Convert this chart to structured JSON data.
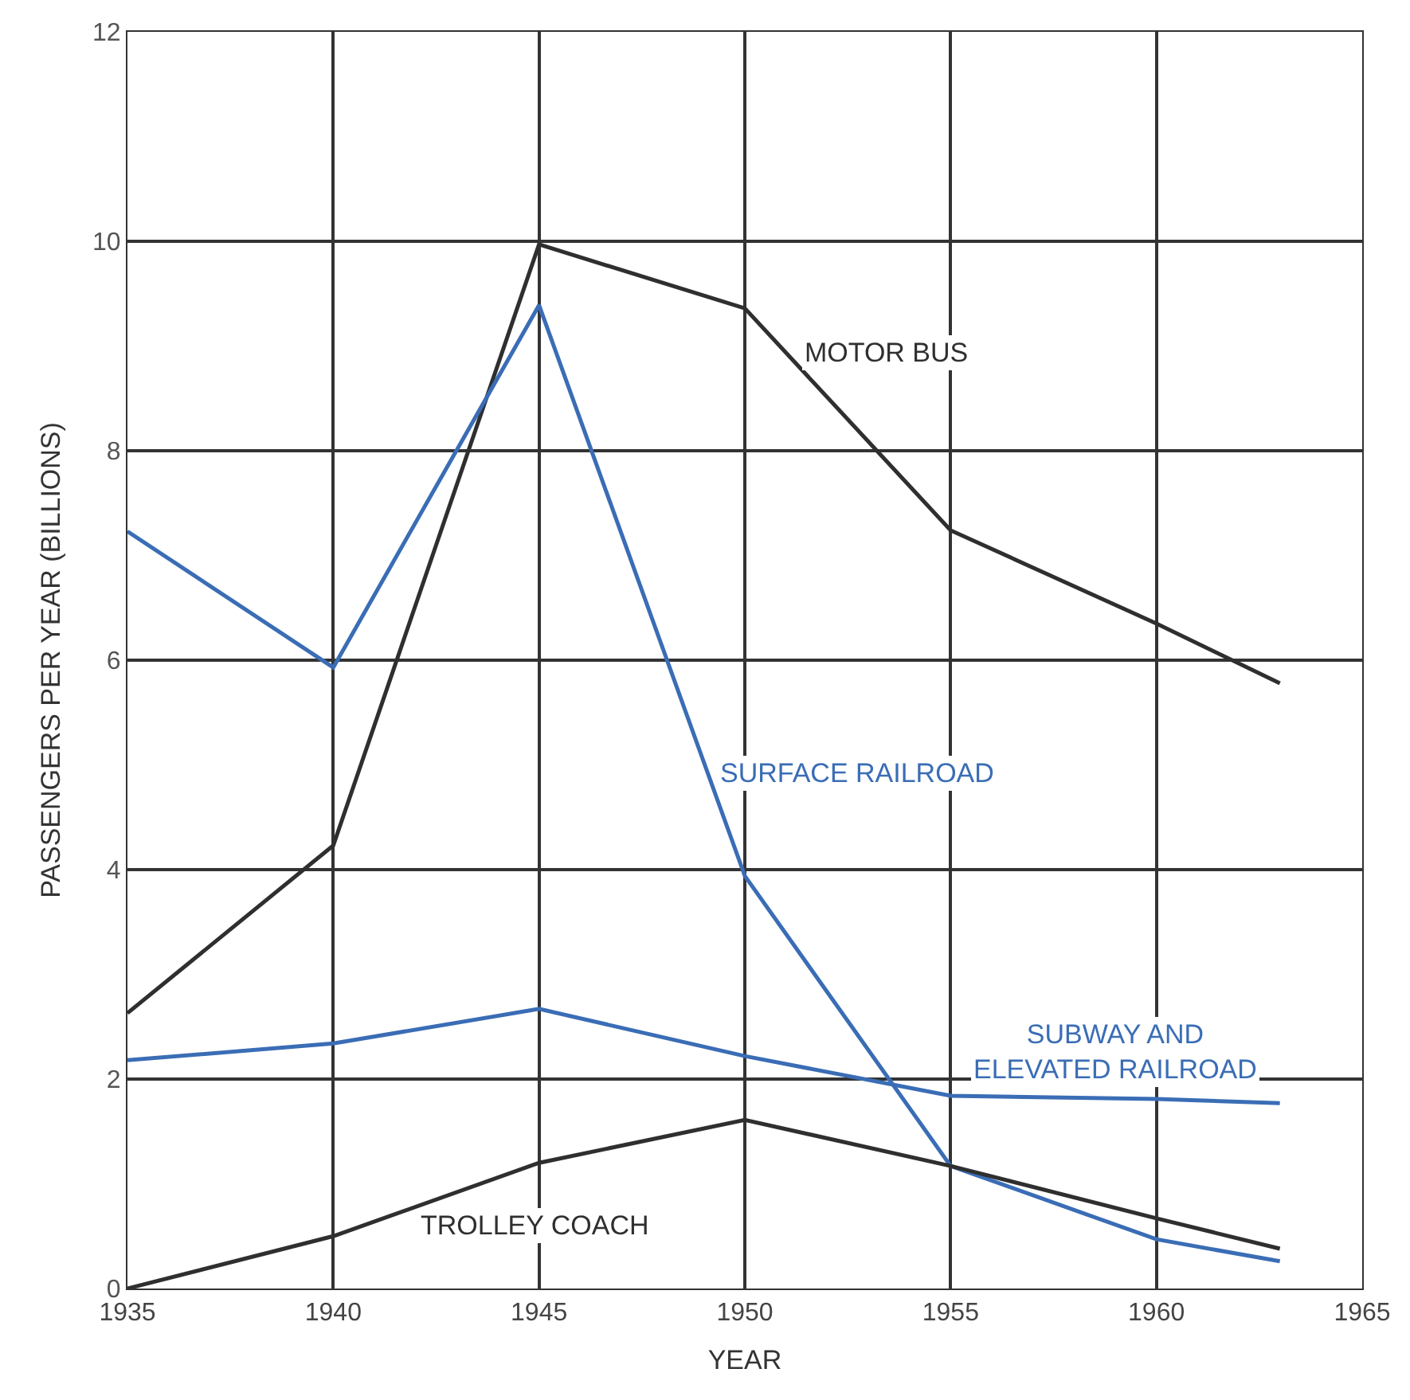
{
  "chart_data": {
    "type": "line",
    "xlabel": "YEAR",
    "ylabel": "PASSENGERS PER YEAR (BILLIONS)",
    "x": [
      1935,
      1940,
      1945,
      1950,
      1955,
      1960,
      1963
    ],
    "series": [
      {
        "name": "MOTOR BUS",
        "color": "#2f2f2f",
        "values": [
          2.63,
          4.23,
          9.97,
          9.36,
          7.24,
          6.35,
          5.78
        ]
      },
      {
        "name": "SURFACE RAILROAD",
        "color": "#3a6db5",
        "values": [
          7.23,
          5.93,
          9.39,
          3.94,
          1.17,
          0.47,
          0.26
        ]
      },
      {
        "name": "SUBWAY AND\nELEVATED RAILROAD",
        "color": "#3a6db5",
        "values": [
          2.18,
          2.34,
          2.67,
          2.22,
          1.84,
          1.81,
          1.77
        ]
      },
      {
        "name": "TROLLEY COACH",
        "color": "#2f2f2f",
        "values": [
          0.0,
          0.5,
          1.2,
          1.61,
          1.17,
          0.67,
          0.38
        ]
      }
    ],
    "xlim": [
      1935,
      1965
    ],
    "xticks": [
      1935,
      1940,
      1945,
      1950,
      1955,
      1960,
      1965
    ],
    "ylim": [
      0,
      12
    ],
    "yticks": [
      0,
      2,
      4,
      6,
      8,
      10,
      12
    ],
    "grid": true,
    "legend": false,
    "marker": "none",
    "line_style": "solid"
  }
}
